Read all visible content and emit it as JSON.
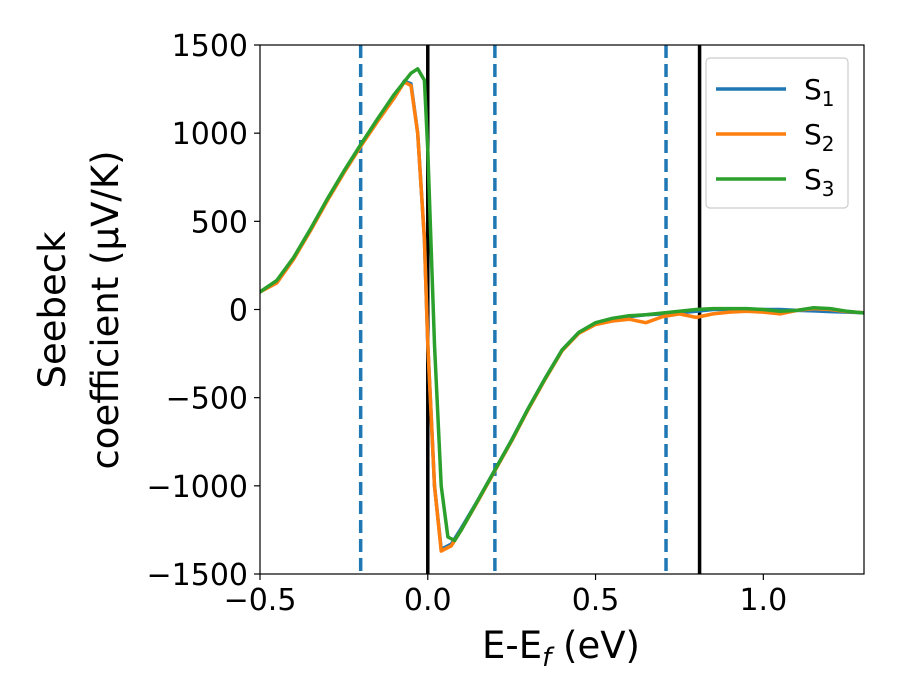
{
  "chart_data": {
    "type": "line",
    "xlabel": "E-E",
    "xlabel_sub": "f",
    "xlabel_unit": " (eV)",
    "ylabel_line1": "Seebeck",
    "ylabel_line2": "coefficient  (μV/K)",
    "xlim": [
      -0.5,
      1.3
    ],
    "ylim": [
      -1500,
      1500
    ],
    "x_ticks": [
      -0.5,
      0.0,
      0.5,
      1.0
    ],
    "x_tick_labels": [
      "−0.5",
      "0.0",
      "0.5",
      "1.0"
    ],
    "y_ticks": [
      -1500,
      -1000,
      -500,
      0,
      500,
      1000,
      1500
    ],
    "y_tick_labels": [
      "−1500",
      "−1000",
      "−500",
      "0",
      "500",
      "1000",
      "1500"
    ],
    "grid": false,
    "legend_position": "top-right",
    "vlines": [
      {
        "x": -0.2,
        "style": "dashed",
        "color": "#1f77b4"
      },
      {
        "x": 0.2,
        "style": "dashed",
        "color": "#1f77b4"
      },
      {
        "x": 0.71,
        "style": "dashed",
        "color": "#1f77b4"
      },
      {
        "x": 0.0,
        "style": "solid",
        "color": "#000000"
      },
      {
        "x": 0.81,
        "style": "solid",
        "color": "#000000"
      }
    ],
    "series": [
      {
        "name": "S",
        "sub": "1",
        "color": "#1f77b4",
        "points": [
          [
            -0.5,
            100
          ],
          [
            -0.45,
            160
          ],
          [
            -0.4,
            290
          ],
          [
            -0.35,
            450
          ],
          [
            -0.3,
            620
          ],
          [
            -0.25,
            780
          ],
          [
            -0.2,
            930
          ],
          [
            -0.15,
            1070
          ],
          [
            -0.1,
            1200
          ],
          [
            -0.07,
            1295
          ],
          [
            -0.05,
            1280
          ],
          [
            -0.03,
            1000
          ],
          [
            -0.01,
            400
          ],
          [
            0.0,
            -200
          ],
          [
            0.02,
            -1000
          ],
          [
            0.04,
            -1360
          ],
          [
            0.07,
            -1330
          ],
          [
            0.1,
            -1240
          ],
          [
            0.15,
            -1080
          ],
          [
            0.2,
            -910
          ],
          [
            0.25,
            -740
          ],
          [
            0.3,
            -560
          ],
          [
            0.35,
            -390
          ],
          [
            0.4,
            -230
          ],
          [
            0.45,
            -130
          ],
          [
            0.5,
            -80
          ],
          [
            0.55,
            -55
          ],
          [
            0.6,
            -40
          ],
          [
            0.65,
            -30
          ],
          [
            0.7,
            -25
          ],
          [
            0.75,
            -18
          ],
          [
            0.8,
            -10
          ],
          [
            0.85,
            0
          ],
          [
            0.9,
            0
          ],
          [
            0.95,
            0
          ],
          [
            1.0,
            0
          ],
          [
            1.05,
            0
          ],
          [
            1.1,
            -5
          ],
          [
            1.15,
            -8
          ],
          [
            1.2,
            -12
          ],
          [
            1.25,
            -15
          ],
          [
            1.3,
            -18
          ]
        ]
      },
      {
        "name": "S",
        "sub": "2",
        "color": "#ff7f0e",
        "points": [
          [
            -0.5,
            100
          ],
          [
            -0.45,
            150
          ],
          [
            -0.4,
            285
          ],
          [
            -0.35,
            445
          ],
          [
            -0.3,
            615
          ],
          [
            -0.25,
            775
          ],
          [
            -0.2,
            925
          ],
          [
            -0.15,
            1065
          ],
          [
            -0.1,
            1200
          ],
          [
            -0.07,
            1290
          ],
          [
            -0.05,
            1270
          ],
          [
            -0.03,
            1000
          ],
          [
            -0.01,
            400
          ],
          [
            0.0,
            -200
          ],
          [
            0.02,
            -1000
          ],
          [
            0.04,
            -1370
          ],
          [
            0.07,
            -1340
          ],
          [
            0.1,
            -1250
          ],
          [
            0.15,
            -1085
          ],
          [
            0.2,
            -915
          ],
          [
            0.25,
            -745
          ],
          [
            0.3,
            -565
          ],
          [
            0.35,
            -395
          ],
          [
            0.4,
            -235
          ],
          [
            0.45,
            -135
          ],
          [
            0.5,
            -85
          ],
          [
            0.55,
            -65
          ],
          [
            0.6,
            -55
          ],
          [
            0.65,
            -75
          ],
          [
            0.7,
            -40
          ],
          [
            0.75,
            -25
          ],
          [
            0.8,
            -45
          ],
          [
            0.85,
            -25
          ],
          [
            0.9,
            -15
          ],
          [
            0.95,
            -10
          ],
          [
            1.0,
            -15
          ],
          [
            1.05,
            -25
          ],
          [
            1.1,
            -5
          ],
          [
            1.15,
            5
          ],
          [
            1.2,
            0
          ],
          [
            1.25,
            -12
          ],
          [
            1.3,
            -18
          ]
        ]
      },
      {
        "name": "S",
        "sub": "3",
        "color": "#2ca02c",
        "points": [
          [
            -0.5,
            100
          ],
          [
            -0.45,
            165
          ],
          [
            -0.4,
            295
          ],
          [
            -0.35,
            455
          ],
          [
            -0.3,
            625
          ],
          [
            -0.25,
            785
          ],
          [
            -0.2,
            935
          ],
          [
            -0.15,
            1080
          ],
          [
            -0.1,
            1220
          ],
          [
            -0.05,
            1340
          ],
          [
            -0.03,
            1365
          ],
          [
            -0.01,
            1300
          ],
          [
            0.0,
            900
          ],
          [
            0.02,
            -200
          ],
          [
            0.04,
            -1000
          ],
          [
            0.06,
            -1290
          ],
          [
            0.08,
            -1310
          ],
          [
            0.1,
            -1250
          ],
          [
            0.15,
            -1080
          ],
          [
            0.2,
            -910
          ],
          [
            0.25,
            -740
          ],
          [
            0.3,
            -560
          ],
          [
            0.35,
            -390
          ],
          [
            0.4,
            -230
          ],
          [
            0.45,
            -130
          ],
          [
            0.5,
            -75
          ],
          [
            0.55,
            -50
          ],
          [
            0.6,
            -35
          ],
          [
            0.65,
            -30
          ],
          [
            0.7,
            -20
          ],
          [
            0.75,
            -10
          ],
          [
            0.8,
            0
          ],
          [
            0.85,
            5
          ],
          [
            0.9,
            5
          ],
          [
            0.95,
            5
          ],
          [
            1.0,
            0
          ],
          [
            1.05,
            -10
          ],
          [
            1.1,
            -5
          ],
          [
            1.15,
            10
          ],
          [
            1.2,
            5
          ],
          [
            1.25,
            -10
          ],
          [
            1.3,
            -20
          ]
        ]
      }
    ]
  }
}
